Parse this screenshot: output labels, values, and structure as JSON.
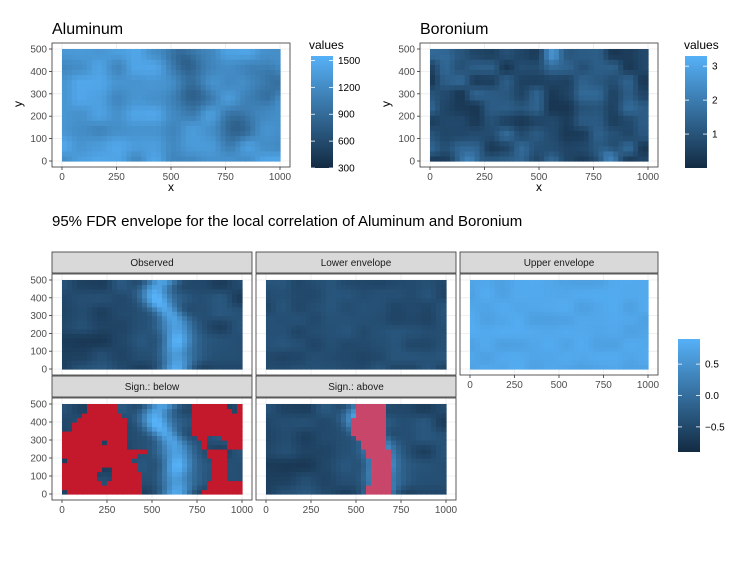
{
  "title": "95% FDR envelope for the local correlation of Aluminum and Boronium",
  "colors": {
    "low": "#132b43",
    "high": "#56b1f7",
    "signif": "#c4182d",
    "strip": "#d9d9d9",
    "strip_border": "#333333",
    "grid": "#ebebeb",
    "panel_border": "#333333"
  },
  "chart_data": [
    {
      "type": "heatmap",
      "title": "Aluminum",
      "xlabel": "x",
      "ylabel": "y",
      "xlim": [
        0,
        1000
      ],
      "ylim": [
        0,
        500
      ],
      "xticks": [
        "0",
        "250",
        "500",
        "750",
        "1000"
      ],
      "yticks": [
        "0",
        "100",
        "200",
        "300",
        "400",
        "500"
      ],
      "legend": {
        "title": "values",
        "range": [
          300,
          1550
        ],
        "ticks": [
          "300",
          "600",
          "900",
          "1200",
          "1500"
        ],
        "tick_values": [
          300,
          600,
          900,
          1200,
          1500
        ],
        "position": "right"
      },
      "field": {
        "grid": [
          10,
          5
        ],
        "mean": 1300,
        "amplitude": 380,
        "low_spots": [
          [
            600,
            300
          ],
          [
            560,
            450
          ],
          [
            800,
            150
          ],
          [
            950,
            350
          ]
        ]
      }
    },
    {
      "type": "heatmap",
      "title": "Boronium",
      "xlabel": "x",
      "ylabel": "y",
      "xlim": [
        0,
        1000
      ],
      "ylim": [
        0,
        500
      ],
      "xticks": [
        "0",
        "250",
        "500",
        "750",
        "1000"
      ],
      "yticks": [
        "0",
        "100",
        "200",
        "300",
        "400",
        "500"
      ],
      "legend": {
        "title": "values",
        "range": [
          0,
          3.3
        ],
        "ticks": [
          "1",
          "2",
          "3"
        ],
        "tick_values": [
          1,
          2,
          3
        ],
        "position": "right"
      },
      "field": {
        "grid": [
          10,
          5
        ],
        "mean": 0.9,
        "amplitude": 1.3,
        "high_spots": [
          [
            820,
            20
          ],
          [
            560,
            480
          ],
          [
            180,
            0
          ]
        ]
      }
    },
    {
      "type": "heatmap",
      "title": "95% FDR envelope for the local correlation of Aluminum and Boronium",
      "facets": [
        {
          "label": "Observed",
          "pattern": "observed"
        },
        {
          "label": "Lower envelope",
          "pattern": "lower"
        },
        {
          "label": "Upper envelope",
          "pattern": "upper"
        },
        {
          "label": "Sign.: below",
          "pattern": "observed",
          "signif": "below"
        },
        {
          "label": "Sign.: above",
          "pattern": "observed",
          "signif": "above"
        }
      ],
      "xlim": [
        0,
        1000
      ],
      "ylim": [
        0,
        500
      ],
      "xticks": [
        "0",
        "250",
        "500",
        "750",
        "1000"
      ],
      "yticks": [
        "0",
        "100",
        "200",
        "300",
        "400",
        "500"
      ],
      "legend": {
        "range": [
          -0.9,
          0.9
        ],
        "ticks": [
          "0.5",
          "0.0",
          "−0.5"
        ],
        "tick_values": [
          0.5,
          0.0,
          -0.5
        ],
        "position": "right"
      },
      "observed_field": {
        "ridge_x": 600,
        "ridge_value": 0.8,
        "background": -0.5
      },
      "lower_field": {
        "mean": -0.45
      },
      "upper_field": {
        "mean": 0.75
      },
      "signif_above_band": {
        "x_from": 520,
        "x_to": 720,
        "y_from": 0,
        "y_to": 500
      }
    }
  ]
}
